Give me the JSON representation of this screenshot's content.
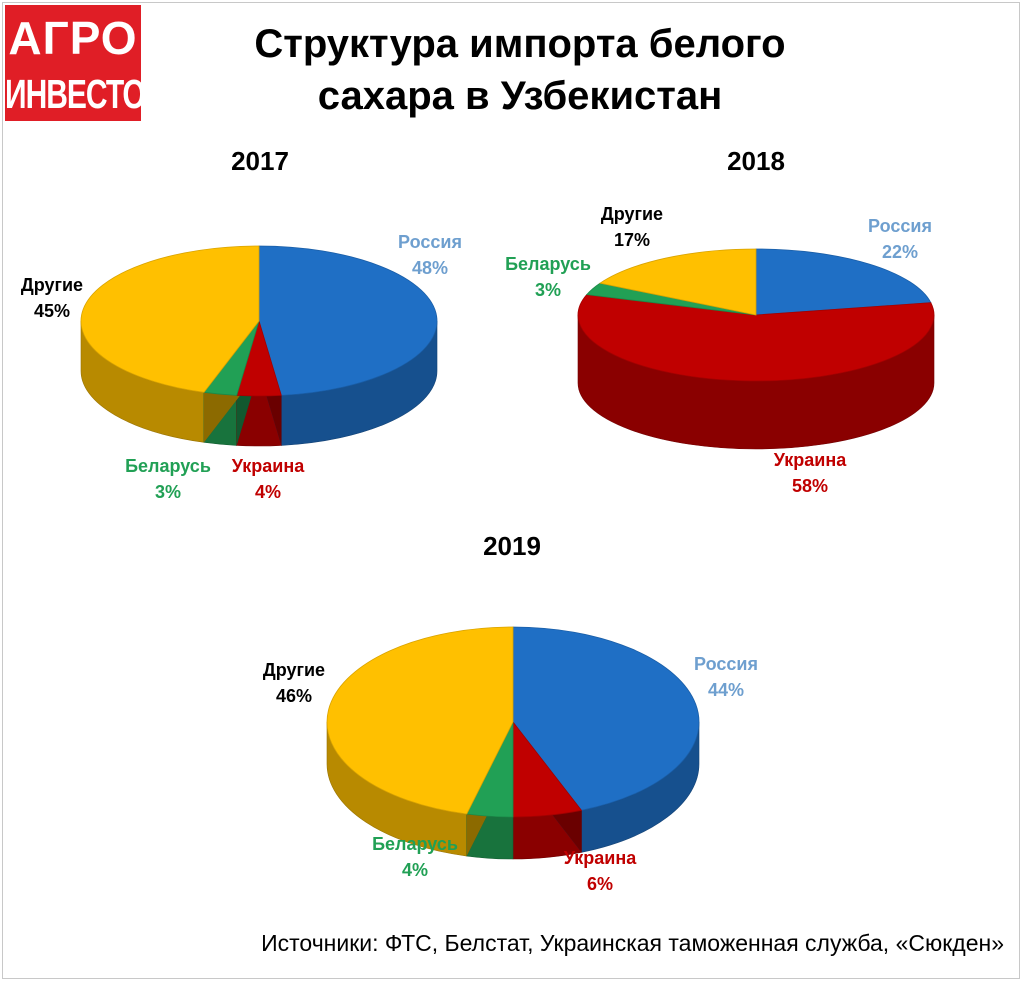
{
  "logo": {
    "line1": "АГРО",
    "line2": "ИНВЕСТОР"
  },
  "title": "Структура импорта белого\nсахара в Узбекистан",
  "source": "Источники:  ФТС, Белстат, Украинская таможенная служба, «Сюкден»",
  "colors": {
    "Россия": "#1f6fc5",
    "Украина": "#c00000",
    "Беларусь": "#21a055",
    "Другие": "#ffc000"
  },
  "label_colors": {
    "Россия": "#6e9fcf",
    "Украина": "#c00000",
    "Беларусь": "#21a055",
    "Другие": "#000000"
  },
  "chart_data": [
    {
      "type": "pie",
      "title": "2017",
      "categories": [
        "Россия",
        "Украина",
        "Беларусь",
        "Другие"
      ],
      "values": [
        48,
        4,
        3,
        45
      ],
      "labels": [
        "48%",
        "4%",
        "3%",
        "45%"
      ]
    },
    {
      "type": "pie",
      "title": "2018",
      "categories": [
        "Россия",
        "Украина",
        "Беларусь",
        "Другие"
      ],
      "values": [
        22,
        58,
        3,
        17
      ],
      "labels": [
        "22%",
        "58%",
        "3%",
        "17%"
      ]
    },
    {
      "type": "pie",
      "title": "2019",
      "categories": [
        "Россия",
        "Украина",
        "Беларусь",
        "Другие"
      ],
      "values": [
        44,
        6,
        4,
        46
      ],
      "labels": [
        "44%",
        "6%",
        "4%",
        "46%"
      ]
    }
  ]
}
